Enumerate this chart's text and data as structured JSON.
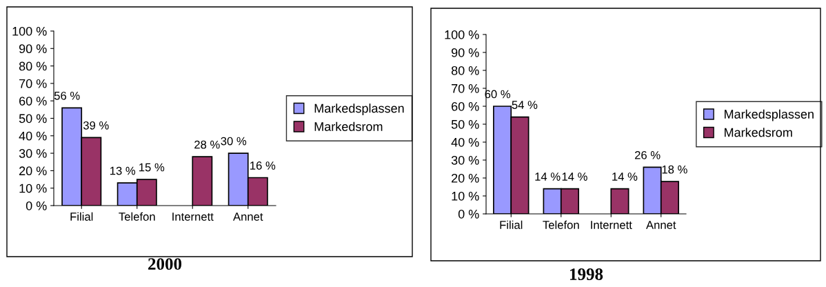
{
  "chart_data": [
    {
      "type": "bar",
      "title": "2000",
      "categories": [
        "Filial",
        "Telefon",
        "Internett",
        "Annet"
      ],
      "series": [
        {
          "name": "Markedsplassen",
          "color": "#9999ff",
          "values": [
            56,
            13,
            null,
            30
          ],
          "value_labels": [
            "56 %",
            "13 %",
            null,
            "30 %"
          ]
        },
        {
          "name": "Markedsrom",
          "color": "#993366",
          "values": [
            39,
            15,
            28,
            16
          ],
          "value_labels": [
            "39 %",
            "15 %",
            "28 %",
            "16 %"
          ]
        }
      ],
      "ylim": [
        0,
        100
      ],
      "yticks": [
        {
          "value": 0,
          "label": "0 %"
        },
        {
          "value": 10,
          "label": "10 %"
        },
        {
          "value": 20,
          "label": "20 %"
        },
        {
          "value": 30,
          "label": "30 %"
        },
        {
          "value": 40,
          "label": "40 %"
        },
        {
          "value": 50,
          "label": "50 %"
        },
        {
          "value": 60,
          "label": "60 %"
        },
        {
          "value": 70,
          "label": "70 %"
        },
        {
          "value": 80,
          "label": "80 %"
        },
        {
          "value": 90,
          "label": "90 %"
        },
        {
          "value": 100,
          "label": "100 %"
        }
      ],
      "grid": false,
      "legend": "right"
    },
    {
      "type": "bar",
      "title": "1998",
      "categories": [
        "Filial",
        "Telefon",
        "Internett",
        "Annet"
      ],
      "series": [
        {
          "name": "Markedsplassen",
          "color": "#9999ff",
          "values": [
            60,
            14,
            null,
            26
          ],
          "value_labels": [
            "60 %",
            "14 %",
            null,
            "26 %"
          ]
        },
        {
          "name": "Markedsrom",
          "color": "#993366",
          "values": [
            54,
            14,
            14,
            18
          ],
          "value_labels": [
            "54 %",
            "14 %",
            "14 %",
            "18 %"
          ]
        }
      ],
      "ylim": [
        0,
        100
      ],
      "yticks": [
        {
          "value": 0,
          "label": "0 %"
        },
        {
          "value": 10,
          "label": "10 %"
        },
        {
          "value": 20,
          "label": "20 %"
        },
        {
          "value": 30,
          "label": "30 %"
        },
        {
          "value": 40,
          "label": "40 %"
        },
        {
          "value": 50,
          "label": "50 %"
        },
        {
          "value": 60,
          "label": "60 %"
        },
        {
          "value": 70,
          "label": "70 %"
        },
        {
          "value": 80,
          "label": "80 %"
        },
        {
          "value": 90,
          "label": "90 %"
        },
        {
          "value": 100,
          "label": "100 %"
        }
      ],
      "grid": false,
      "legend": "right"
    }
  ]
}
